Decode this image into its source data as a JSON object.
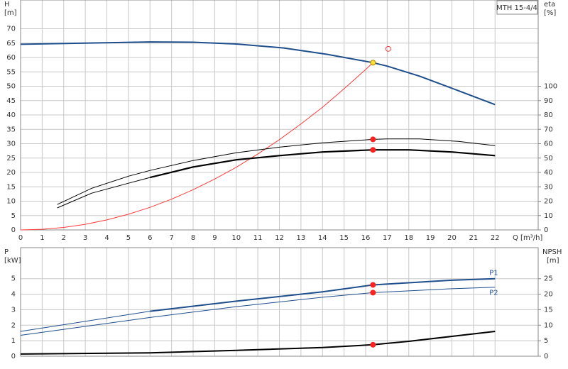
{
  "chart_data": [
    {
      "type": "line",
      "title": "MTH 15-4/4",
      "ylabel": "H",
      "yunit": "[m]",
      "y2label": "eta",
      "y2unit": "[%]",
      "xlabel": "Q [m³/h]",
      "xlim": [
        0,
        24
      ],
      "xticks": [
        0,
        1,
        2,
        3,
        4,
        5,
        6,
        7,
        8,
        9,
        10,
        11,
        12,
        13,
        14,
        15,
        16,
        17,
        18,
        19,
        20,
        21,
        22
      ],
      "ylim": [
        0,
        80
      ],
      "yticks": [
        0,
        5,
        10,
        15,
        20,
        25,
        30,
        35,
        40,
        45,
        50,
        55,
        60,
        65,
        70
      ],
      "y2lim": [
        0,
        160
      ],
      "y2ticks": [
        0,
        10,
        20,
        30,
        40,
        50,
        60,
        70,
        80,
        90,
        100
      ],
      "grid": true,
      "show_xtick_labels": true,
      "series": [
        {
          "color": "#1f4e8c",
          "width": 2,
          "x": [
            0,
            3,
            6,
            8,
            10,
            12.2,
            14.2,
            16.34,
            17,
            18.5,
            20.1,
            22
          ],
          "values": [
            64.6,
            65.0,
            65.4,
            65.3,
            64.7,
            63.3,
            61.1,
            58.2,
            57.0,
            53.5,
            49.0,
            43.6
          ]
        },
        {
          "color": "#ff3b3b",
          "width": 1,
          "x": [
            0,
            1,
            2,
            3,
            4,
            5,
            6,
            7,
            8,
            9,
            10,
            11,
            12,
            13,
            14,
            15,
            16,
            16.34
          ],
          "values": [
            0,
            0.22,
            0.87,
            1.96,
            3.49,
            5.45,
            7.85,
            10.7,
            14.0,
            17.7,
            21.8,
            26.4,
            31.4,
            36.9,
            42.7,
            49.1,
            55.8,
            58.2
          ]
        },
        {
          "color": "#000",
          "width": 1,
          "axis": "y2",
          "x": [
            1.7,
            3.3,
            5,
            6,
            8,
            10,
            12,
            14,
            16.34,
            17,
            18.5,
            20.3,
            22
          ],
          "values": [
            17.7,
            29,
            37.4,
            41.4,
            48.3,
            53.7,
            57.6,
            60.6,
            63,
            63.3,
            63.3,
            61.6,
            58.6
          ]
        },
        {
          "color": "#000",
          "width": 1,
          "axis": "y2",
          "x": [
            1.7,
            3.3,
            5,
            6
          ],
          "values": [
            15.3,
            25.6,
            32.5,
            36.5
          ]
        },
        {
          "color": "#000",
          "width": 2.2,
          "axis": "y2",
          "x": [
            6,
            8,
            10,
            12,
            14,
            16.34,
            18,
            20,
            22
          ],
          "values": [
            36.5,
            43.8,
            48.8,
            51.7,
            54.2,
            55.7,
            55.7,
            54.2,
            51.7
          ]
        }
      ],
      "points": [
        {
          "x": 16.34,
          "y": 58.2,
          "color": "#ffe033",
          "stroke": "#b08800"
        },
        {
          "x": 17.05,
          "y": 63,
          "color": "none",
          "stroke": "#ff3b3b"
        },
        {
          "x": 16.34,
          "y": 63,
          "axis": "y2",
          "color": "#ff2020",
          "stroke": "#ff2020"
        },
        {
          "x": 16.34,
          "y": 55.7,
          "axis": "y2",
          "color": "#ff2020",
          "stroke": "#ff2020"
        }
      ]
    },
    {
      "type": "line",
      "ylabel": "P",
      "yunit": "[kW]",
      "y2label": "NPSH",
      "y2unit": "[m]",
      "xlim": [
        0,
        24
      ],
      "xticks": [
        0,
        1,
        2,
        3,
        4,
        5,
        6,
        7,
        8,
        9,
        10,
        11,
        12,
        13,
        14,
        15,
        16,
        17,
        18,
        19,
        20,
        21,
        22
      ],
      "ylim": [
        0,
        7
      ],
      "yticks": [
        0,
        1,
        2,
        3,
        4,
        5
      ],
      "y2lim": [
        0,
        35
      ],
      "y2ticks": [
        0,
        5,
        10,
        15,
        20,
        25
      ],
      "grid": true,
      "show_xtick_labels": false,
      "series": [
        {
          "name": "P1",
          "color": "#1f4e8c",
          "width": 1,
          "x": [
            0,
            6
          ],
          "values": [
            1.6,
            2.9
          ]
        },
        {
          "name": "P1",
          "color": "#1f4e8c",
          "width": 2,
          "x": [
            6,
            10,
            14,
            16.34,
            20,
            22
          ],
          "values": [
            2.9,
            3.55,
            4.15,
            4.6,
            4.9,
            5.0
          ]
        },
        {
          "name": "P2",
          "color": "#1f4e8c",
          "width": 1,
          "x": [
            0,
            6,
            10,
            14,
            16.34,
            20,
            22
          ],
          "values": [
            1.35,
            2.5,
            3.2,
            3.8,
            4.1,
            4.35,
            4.45
          ]
        },
        {
          "color": "#000",
          "width": 2,
          "axis": "y2",
          "x": [
            0,
            6,
            10,
            14,
            16.34,
            18,
            20,
            22
          ],
          "values": [
            0.7,
            1.1,
            1.9,
            2.8,
            3.7,
            4.8,
            6.4,
            8.0
          ]
        }
      ],
      "points": [
        {
          "x": 16.34,
          "y": 4.6,
          "color": "#ff2020",
          "stroke": "#ff2020"
        },
        {
          "x": 16.34,
          "y": 4.1,
          "color": "#ff2020",
          "stroke": "#ff2020"
        },
        {
          "x": 16.34,
          "y": 3.7,
          "axis": "y2",
          "color": "#ff2020",
          "stroke": "#ff2020"
        }
      ]
    }
  ]
}
